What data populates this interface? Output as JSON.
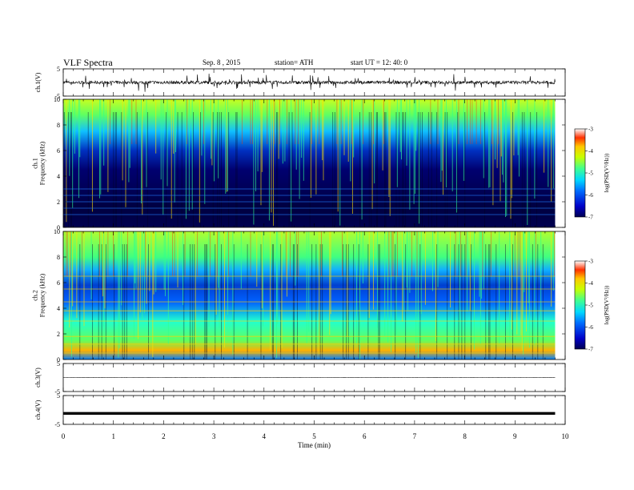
{
  "header": {
    "title": "VLF Spectra",
    "date": "Sep. 8 , 2015",
    "station": "station= ATH",
    "start_time": "start UT = 12: 40: 0"
  },
  "chart_data": [
    {
      "type": "line",
      "panel": "ch1-waveform",
      "ylabel": "ch.1(V)",
      "ylim": [
        -5,
        5
      ],
      "y_ticks": [
        "5",
        "-5"
      ],
      "x_range_min": [
        0,
        9.8
      ],
      "baseline_v": 0,
      "amplitude_v": 1.2
    },
    {
      "type": "heatmap",
      "panel": "ch1-spectrogram",
      "ylabel_lines": [
        "ch.1",
        "Frequency (kHz)"
      ],
      "ylim": [
        0,
        10
      ],
      "y_ticks": [
        "0",
        "2",
        "4",
        "6",
        "8",
        "10"
      ],
      "x_range_min": [
        0,
        9.8
      ],
      "colorbar": {
        "label": "log(PSD(V²/Hz))",
        "range": [
          -7,
          -3
        ],
        "ticks": [
          "-3",
          "-4",
          "-5",
          "-6",
          "-7"
        ]
      }
    },
    {
      "type": "heatmap",
      "panel": "ch2-spectrogram",
      "ylabel_lines": [
        "ch.2",
        "Frequency (kHz)"
      ],
      "ylim": [
        0,
        10
      ],
      "y_ticks": [
        "0",
        "2",
        "4",
        "6",
        "8",
        "10"
      ],
      "x_range_min": [
        0,
        9.8
      ],
      "colorbar": {
        "label": "log(PSD(V²/Hz))",
        "range": [
          -7,
          -3
        ],
        "ticks": [
          "-3",
          "-4",
          "-5",
          "-6",
          "-7"
        ]
      }
    },
    {
      "type": "line",
      "panel": "ch3-waveform",
      "ylabel": "ch.3(V)",
      "ylim": [
        -5,
        5
      ],
      "y_ticks": [
        "5",
        "-5"
      ],
      "x_range_min": [
        0,
        9.8
      ],
      "baseline_v": 0,
      "amplitude_v": 0.05
    },
    {
      "type": "line",
      "panel": "ch4-waveform",
      "ylabel": "ch.4(V)",
      "ylim": [
        -5,
        5
      ],
      "y_ticks": [
        "5",
        "-5"
      ],
      "x_range_min": [
        0,
        9.8
      ],
      "baseline_v": -1.2,
      "amplitude_v": 0.3
    }
  ],
  "x_axis": {
    "label": "Time (min)",
    "range": [
      0,
      10
    ],
    "ticks": [
      "0",
      "1",
      "2",
      "3",
      "4",
      "5",
      "6",
      "7",
      "8",
      "9",
      "10"
    ]
  }
}
